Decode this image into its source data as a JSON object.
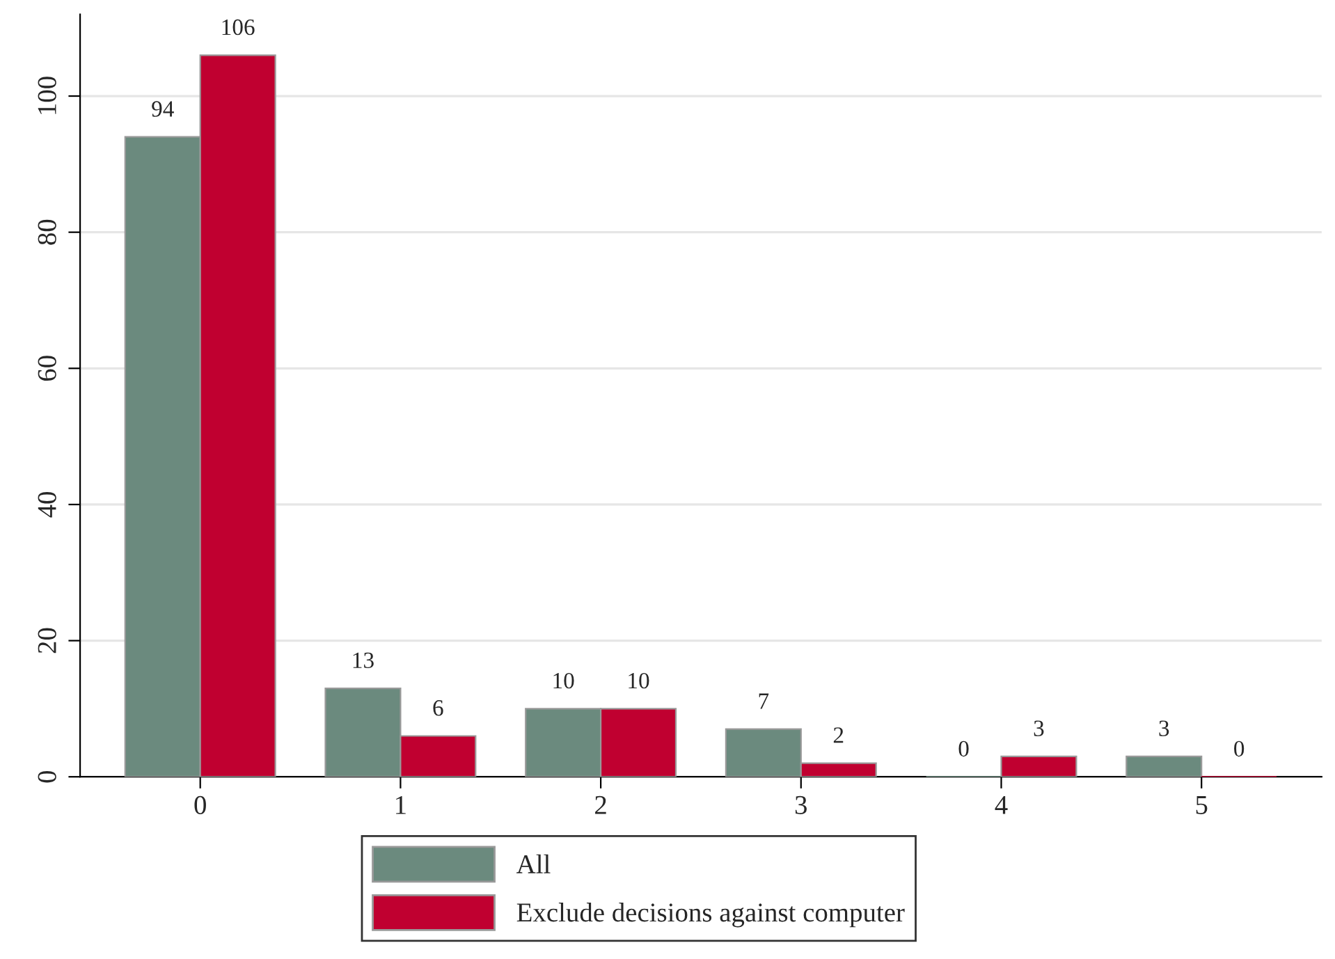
{
  "chart_data": {
    "type": "bar",
    "categories": [
      "0",
      "1",
      "2",
      "3",
      "4",
      "5"
    ],
    "series": [
      {
        "name": "All",
        "color": "#6b8a7e",
        "values": [
          94,
          13,
          10,
          7,
          0,
          3
        ]
      },
      {
        "name": "Exclude decisions against computer",
        "color": "#c00030",
        "values": [
          106,
          6,
          10,
          2,
          3,
          0
        ]
      }
    ],
    "ylim": [
      0,
      112
    ],
    "yticks": [
      0,
      20,
      40,
      60,
      80,
      100
    ],
    "grid": "y",
    "legend": "bottom",
    "data_labels": true
  }
}
